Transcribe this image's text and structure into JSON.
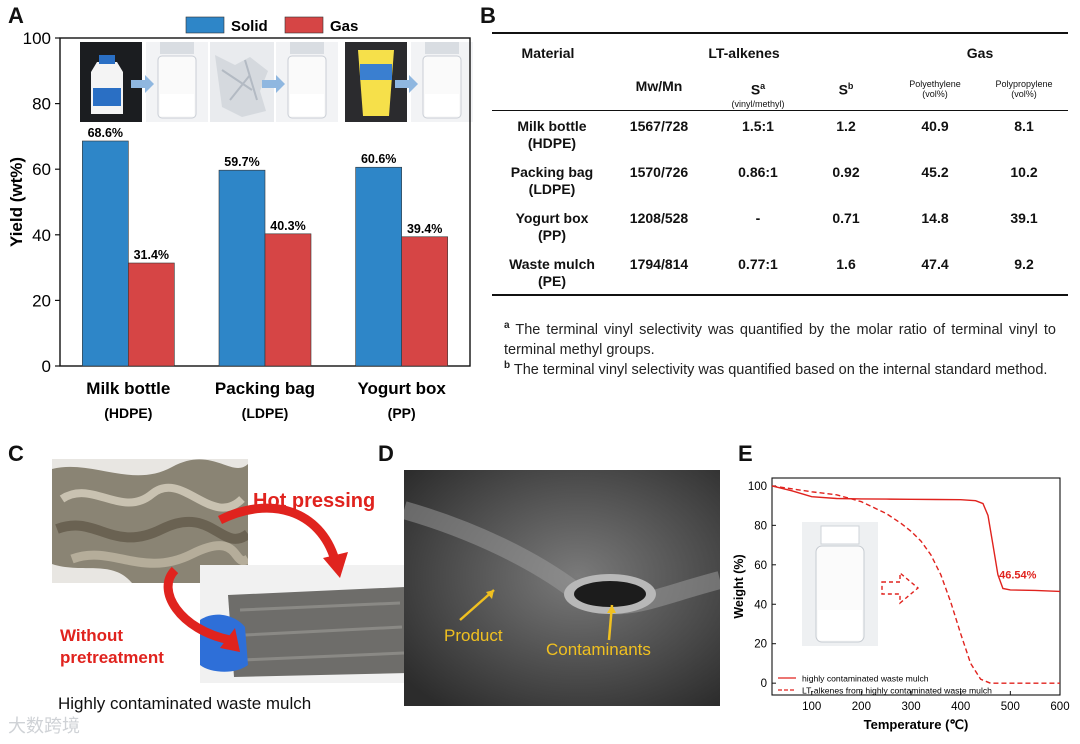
{
  "panels": {
    "a": "A",
    "b": "B",
    "c": "C",
    "d": "D",
    "e": "E"
  },
  "chart_data": [
    {
      "type": "bar",
      "panel": "A",
      "legend": [
        "Solid",
        "Gas"
      ],
      "ylabel": "Yield (wt%)",
      "ylim": [
        0,
        100
      ],
      "yticks": [
        0,
        20,
        40,
        60,
        80,
        100
      ],
      "categories": [
        {
          "name": "Milk bottle",
          "sub": "(HDPE)"
        },
        {
          "name": "Packing bag",
          "sub": "(LDPE)"
        },
        {
          "name": "Yogurt box",
          "sub": "(PP)"
        }
      ],
      "series": [
        {
          "name": "Solid",
          "color": "#2E86C8",
          "values": [
            68.6,
            59.7,
            60.6
          ],
          "labels": [
            "68.6%",
            "59.7%",
            "60.6%"
          ]
        },
        {
          "name": "Gas",
          "color": "#D64545",
          "values": [
            31.4,
            40.3,
            39.4
          ],
          "labels": [
            "31.4%",
            "40.3%",
            "39.4%"
          ]
        }
      ]
    },
    {
      "type": "line",
      "panel": "E",
      "xlabel": "Temperature (℃)",
      "ylabel": "Weight (%)",
      "xlim": [
        20,
        600
      ],
      "ylim": [
        -6,
        104
      ],
      "xticks": [
        100,
        200,
        300,
        400,
        500,
        600
      ],
      "yticks": [
        0,
        20,
        40,
        60,
        80,
        100
      ],
      "annotation": "46.54%",
      "series": [
        {
          "name": "highly contaminated waste mulch",
          "style": "solid",
          "color": "#E0231E",
          "x": [
            20,
            60,
            100,
            150,
            200,
            250,
            300,
            350,
            400,
            430,
            445,
            455,
            465,
            475,
            485,
            500,
            550,
            600
          ],
          "y": [
            100,
            97.5,
            94.5,
            93.6,
            93.4,
            93.3,
            93.2,
            93.1,
            93.0,
            92.5,
            91,
            85,
            70,
            55,
            48,
            47.3,
            47,
            46.54
          ]
        },
        {
          "name": "LT-alkenes from highly contaminated waste mulch",
          "style": "dashed",
          "color": "#E0231E",
          "x": [
            20,
            100,
            150,
            200,
            250,
            280,
            300,
            320,
            340,
            360,
            380,
            400,
            420,
            440,
            460,
            480,
            500,
            600
          ],
          "y": [
            100,
            97,
            95.5,
            92,
            86,
            81,
            77,
            72,
            65,
            55,
            41,
            25,
            10,
            2,
            0,
            0,
            0,
            0
          ]
        }
      ]
    }
  ],
  "tableB": {
    "headers": {
      "material": "Material",
      "lt_group": "LT-alkenes",
      "gas_group": "Gas",
      "mwmn": "Mw/Mn",
      "sa": "S",
      "sa_sup": "a",
      "sa_sub": "(vinyl/methyl)",
      "sb": "S",
      "sb_sup": "b",
      "pe": "Polyethylene",
      "pe_unit": "(vol%)",
      "pp": "Polypropylene",
      "pp_unit": "(vol%)"
    },
    "rows": [
      {
        "material": "Milk bottle",
        "type": "(HDPE)",
        "mwmn": "1567/728",
        "sa": "1.5:1",
        "sb": "1.2",
        "pe": "40.9",
        "pp": "8.1"
      },
      {
        "material": "Packing bag",
        "type": "(LDPE)",
        "mwmn": "1570/726",
        "sa": "0.86:1",
        "sb": "0.92",
        "pe": "45.2",
        "pp": "10.2"
      },
      {
        "material": "Yogurt box",
        "type": "(PP)",
        "mwmn": "1208/528",
        "sa": "-",
        "sb": "0.71",
        "pe": "14.8",
        "pp": "39.1"
      },
      {
        "material": "Waste mulch",
        "type": "(PE)",
        "mwmn": "1794/814",
        "sa": "0.77:1",
        "sb": "1.6",
        "pe": "47.4",
        "pp": "9.2"
      }
    ],
    "footnotes": [
      {
        "mark": "a",
        "text": "The terminal vinyl selectivity was quantified by the molar ratio of terminal vinyl to terminal methyl groups."
      },
      {
        "mark": "b",
        "text": "The terminal vinyl selectivity was quantified based on the internal standard method."
      }
    ]
  },
  "panelC": {
    "hot_pressing": "Hot pressing",
    "without_line1": "Without",
    "without_line2": "pretreatment",
    "caption": "Highly contaminated waste mulch"
  },
  "panelD": {
    "product": "Product",
    "contaminants": "Contaminants"
  },
  "watermark": "大数跨境"
}
